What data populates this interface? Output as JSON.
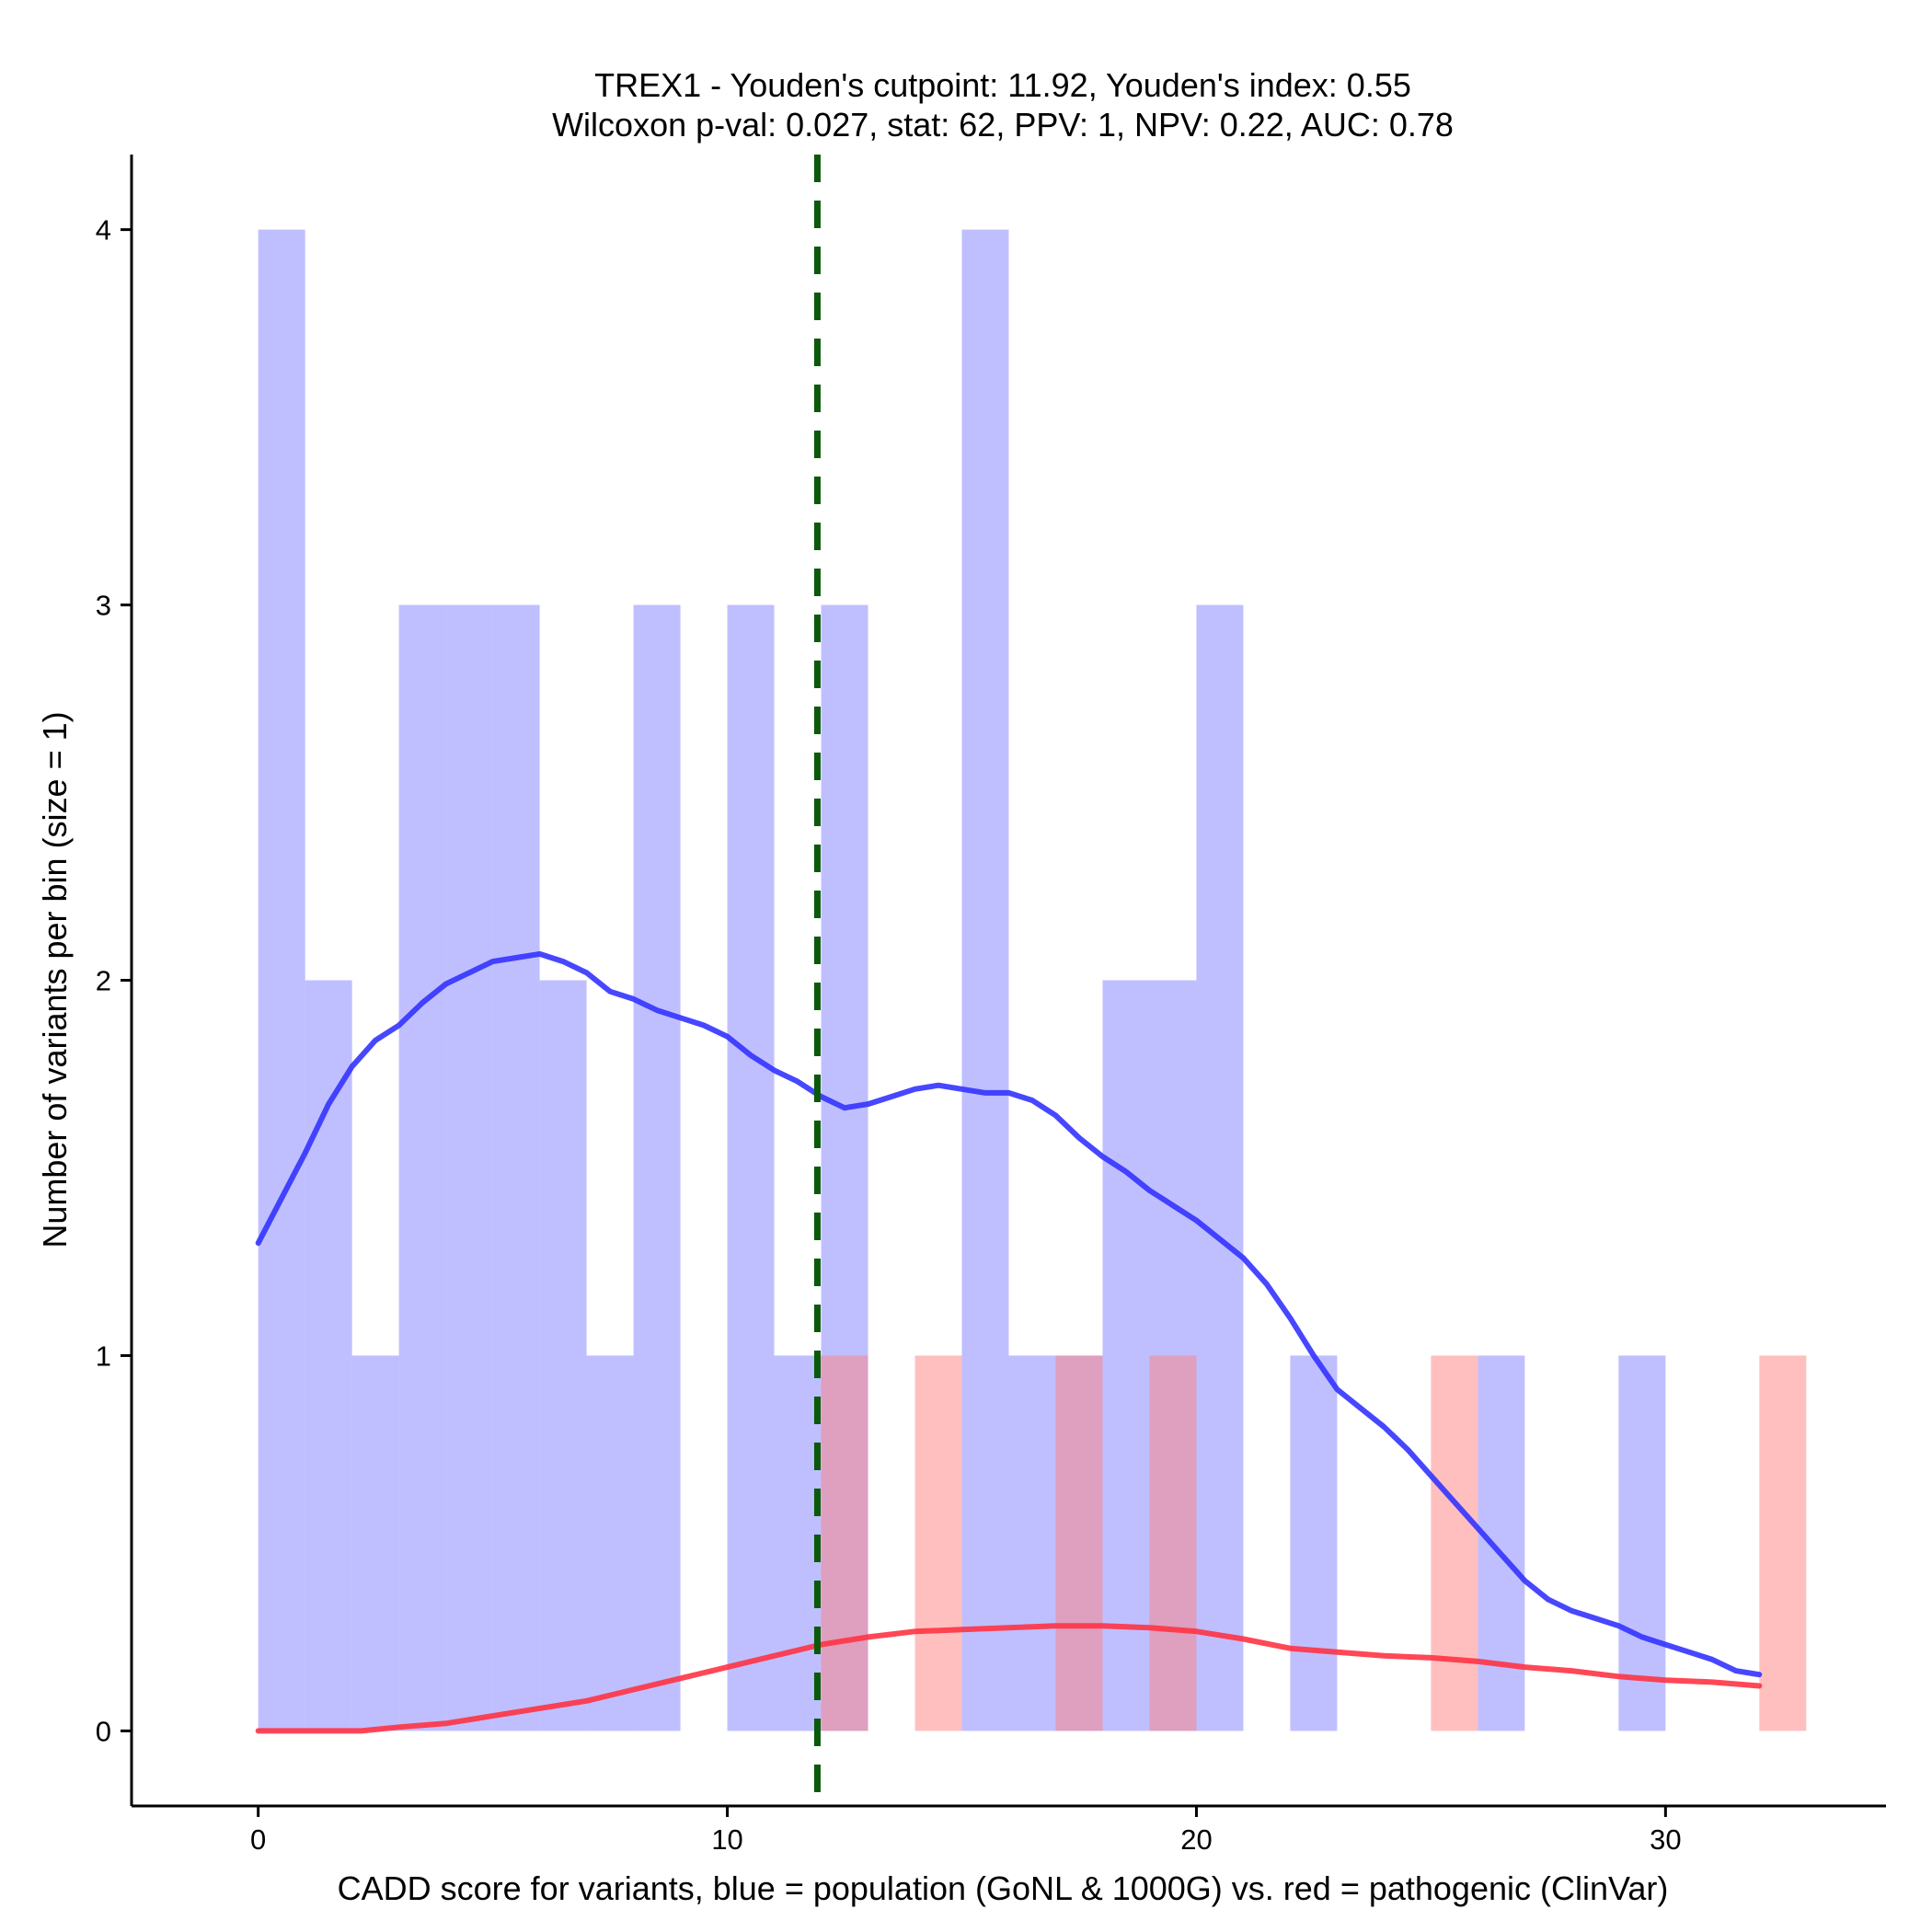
{
  "chart_data": {
    "type": "histogram",
    "title_line1": "TREX1 - Youden's cutpoint: 11.92, Youden's index: 0.55",
    "title_line2": "Wilcoxon p-val: 0.027, stat: 62, PPV: 1, NPV: 0.22, AUC: 0.78",
    "xlabel": "CADD score for variants, blue = population (GoNL & 1000G) vs. red = pathogenic (ClinVar)",
    "ylabel": "Number of variants per bin (size = 1)",
    "xlim": [
      -2.7,
      34.7
    ],
    "ylim": [
      -0.2,
      4.2
    ],
    "x_ticks": [
      0,
      10,
      20,
      30
    ],
    "y_ticks": [
      0,
      1,
      2,
      3,
      4
    ],
    "cutpoint": 11.92,
    "colors": {
      "population_bar": "#8080ff",
      "pathogenic_bar": "#ff8080",
      "population_density": "#3333ff",
      "pathogenic_density": "#ff3344",
      "cutpoint_line": "#0a5a0a"
    },
    "series": [
      {
        "name": "population (GoNL & 1000G)",
        "bins": [
          {
            "x0": 0,
            "x1": 1,
            "count": 4
          },
          {
            "x0": 1,
            "x1": 2,
            "count": 2
          },
          {
            "x0": 2,
            "x1": 3,
            "count": 1
          },
          {
            "x0": 3,
            "x1": 4,
            "count": 3
          },
          {
            "x0": 4,
            "x1": 5,
            "count": 3
          },
          {
            "x0": 5,
            "x1": 6,
            "count": 3
          },
          {
            "x0": 6,
            "x1": 7,
            "count": 2
          },
          {
            "x0": 7,
            "x1": 8,
            "count": 1
          },
          {
            "x0": 8,
            "x1": 9,
            "count": 3
          },
          {
            "x0": 10,
            "x1": 11,
            "count": 3
          },
          {
            "x0": 11,
            "x1": 12,
            "count": 1
          },
          {
            "x0": 12,
            "x1": 13,
            "count": 3
          },
          {
            "x0": 15,
            "x1": 16,
            "count": 4
          },
          {
            "x0": 16,
            "x1": 17,
            "count": 1
          },
          {
            "x0": 17,
            "x1": 18,
            "count": 1
          },
          {
            "x0": 18,
            "x1": 19,
            "count": 2
          },
          {
            "x0": 19,
            "x1": 20,
            "count": 2
          },
          {
            "x0": 20,
            "x1": 21,
            "count": 3
          },
          {
            "x0": 22,
            "x1": 23,
            "count": 1
          },
          {
            "x0": 26,
            "x1": 27,
            "count": 1
          },
          {
            "x0": 29,
            "x1": 30,
            "count": 1
          }
        ],
        "density": [
          [
            0,
            1.3
          ],
          [
            0.5,
            1.42
          ],
          [
            1,
            1.54
          ],
          [
            1.5,
            1.67
          ],
          [
            2,
            1.77
          ],
          [
            2.5,
            1.84
          ],
          [
            3,
            1.88
          ],
          [
            3.5,
            1.94
          ],
          [
            4,
            1.99
          ],
          [
            4.5,
            2.02
          ],
          [
            5,
            2.05
          ],
          [
            5.5,
            2.06
          ],
          [
            6,
            2.07
          ],
          [
            6.5,
            2.05
          ],
          [
            7,
            2.02
          ],
          [
            7.5,
            1.97
          ],
          [
            8,
            1.95
          ],
          [
            8.5,
            1.92
          ],
          [
            9,
            1.9
          ],
          [
            9.5,
            1.88
          ],
          [
            10,
            1.85
          ],
          [
            10.5,
            1.8
          ],
          [
            11,
            1.76
          ],
          [
            11.5,
            1.73
          ],
          [
            12,
            1.69
          ],
          [
            12.5,
            1.66
          ],
          [
            13,
            1.67
          ],
          [
            13.5,
            1.69
          ],
          [
            14,
            1.71
          ],
          [
            14.5,
            1.72
          ],
          [
            15,
            1.71
          ],
          [
            15.5,
            1.7
          ],
          [
            16,
            1.7
          ],
          [
            16.5,
            1.68
          ],
          [
            17,
            1.64
          ],
          [
            17.5,
            1.58
          ],
          [
            18,
            1.53
          ],
          [
            18.5,
            1.49
          ],
          [
            19,
            1.44
          ],
          [
            19.5,
            1.4
          ],
          [
            20,
            1.36
          ],
          [
            20.5,
            1.31
          ],
          [
            21,
            1.26
          ],
          [
            21.5,
            1.19
          ],
          [
            22,
            1.1
          ],
          [
            22.5,
            1.0
          ],
          [
            23,
            0.91
          ],
          [
            23.5,
            0.86
          ],
          [
            24,
            0.81
          ],
          [
            24.5,
            0.75
          ],
          [
            25,
            0.68
          ],
          [
            25.5,
            0.61
          ],
          [
            26,
            0.54
          ],
          [
            26.5,
            0.47
          ],
          [
            27,
            0.4
          ],
          [
            27.5,
            0.35
          ],
          [
            28,
            0.32
          ],
          [
            28.5,
            0.3
          ],
          [
            29,
            0.28
          ],
          [
            29.5,
            0.25
          ],
          [
            30,
            0.23
          ],
          [
            30.5,
            0.21
          ],
          [
            31,
            0.19
          ],
          [
            31.5,
            0.16
          ],
          [
            32,
            0.15
          ]
        ]
      },
      {
        "name": "pathogenic (ClinVar)",
        "bins": [
          {
            "x0": 12,
            "x1": 13,
            "count": 1
          },
          {
            "x0": 14,
            "x1": 15,
            "count": 1
          },
          {
            "x0": 17,
            "x1": 18,
            "count": 1
          },
          {
            "x0": 19,
            "x1": 20,
            "count": 1
          },
          {
            "x0": 25,
            "x1": 26,
            "count": 1
          },
          {
            "x0": 32,
            "x1": 33,
            "count": 1
          }
        ],
        "density": [
          [
            0,
            0.0
          ],
          [
            1,
            0.0
          ],
          [
            2.2,
            0.0
          ],
          [
            3,
            0.01
          ],
          [
            4,
            0.02
          ],
          [
            5,
            0.04
          ],
          [
            6,
            0.06
          ],
          [
            7,
            0.08
          ],
          [
            8,
            0.11
          ],
          [
            9,
            0.14
          ],
          [
            10,
            0.17
          ],
          [
            11,
            0.2
          ],
          [
            12,
            0.23
          ],
          [
            13,
            0.25
          ],
          [
            14,
            0.265
          ],
          [
            15,
            0.27
          ],
          [
            16,
            0.275
          ],
          [
            17,
            0.28
          ],
          [
            18,
            0.28
          ],
          [
            19,
            0.275
          ],
          [
            20,
            0.265
          ],
          [
            21,
            0.245
          ],
          [
            22,
            0.22
          ],
          [
            23,
            0.21
          ],
          [
            24,
            0.2
          ],
          [
            25,
            0.195
          ],
          [
            26,
            0.185
          ],
          [
            27,
            0.17
          ],
          [
            28,
            0.16
          ],
          [
            29,
            0.145
          ],
          [
            30,
            0.135
          ],
          [
            31,
            0.13
          ],
          [
            32,
            0.12
          ]
        ]
      }
    ]
  }
}
